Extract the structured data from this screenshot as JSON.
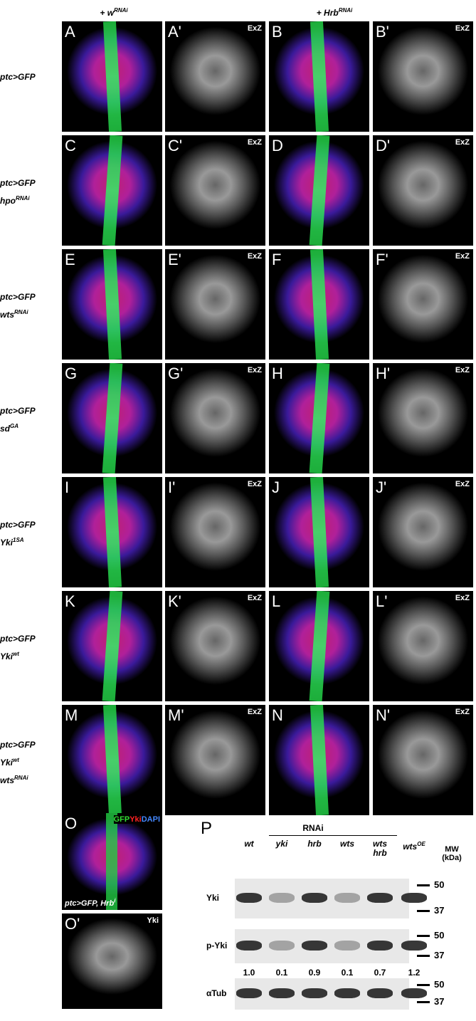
{
  "headers": [
    {
      "t": "+ w",
      "sup": "RNAi"
    },
    {
      "t": "+ Hrb",
      "sup": "RNAi"
    }
  ],
  "stain": "ExZ",
  "rows": [
    {
      "lines": [
        {
          "t": "ptc>GFP"
        }
      ],
      "panels": [
        "A",
        "A'",
        "B",
        "B'"
      ]
    },
    {
      "lines": [
        {
          "t": "ptc>GFP"
        },
        {
          "t": "hpo",
          "sup": "RNAi"
        }
      ],
      "panels": [
        "C",
        "C'",
        "D",
        "D'"
      ]
    },
    {
      "lines": [
        {
          "t": "ptc>GFP"
        },
        {
          "t": "wts",
          "sup": "RNAi"
        }
      ],
      "panels": [
        "E",
        "E'",
        "F",
        "F'"
      ]
    },
    {
      "lines": [
        {
          "t": "ptc>GFP"
        },
        {
          "t": "sd",
          "sup": "GA"
        }
      ],
      "panels": [
        "G",
        "G'",
        "H",
        "H'"
      ]
    },
    {
      "lines": [
        {
          "t": "ptc>GFP"
        },
        {
          "t": "Yki",
          "sup": "1SA"
        }
      ],
      "panels": [
        "I",
        "I'",
        "J",
        "J'"
      ]
    },
    {
      "lines": [
        {
          "t": "ptc>GFP"
        },
        {
          "t": "Yki",
          "sup": "wt"
        }
      ],
      "panels": [
        "K",
        "K'",
        "L",
        "L'"
      ]
    },
    {
      "lines": [
        {
          "t": "ptc>GFP"
        },
        {
          "t": "Yki",
          "sup": "wt"
        },
        {
          "t": "wts",
          "sup": "RNAi"
        }
      ],
      "panels": [
        "M",
        "M'",
        "N",
        "N'"
      ]
    }
  ],
  "panel_o": {
    "label": "O",
    "legend": [
      "GFP",
      "Yki",
      "DAPI"
    ],
    "caption": {
      "t": "ptc>GFP, Hrb",
      "sup": "i"
    }
  },
  "panel_o2": {
    "label": "O'",
    "stain": "Yki"
  },
  "panel_p": {
    "label": "P",
    "group": "RNAi",
    "lanes": [
      {
        "t": "wt"
      },
      {
        "t": "yki"
      },
      {
        "t": "hrb"
      },
      {
        "t": "wts"
      },
      {
        "t": "wts\nhrb"
      },
      {
        "t": "wts",
        "sup": "OE"
      }
    ],
    "mw": "MW\n(kDa)",
    "blots": [
      {
        "name": "Yki",
        "markers": [
          "50",
          "37"
        ]
      },
      {
        "name": "p-Yki",
        "markers": [
          "50",
          "37"
        ],
        "quant": [
          "1.0",
          "0.1",
          "0.9",
          "0.1",
          "0.7",
          "1.2"
        ]
      },
      {
        "name": "αTub",
        "markers": [
          "50",
          "37"
        ]
      }
    ]
  }
}
